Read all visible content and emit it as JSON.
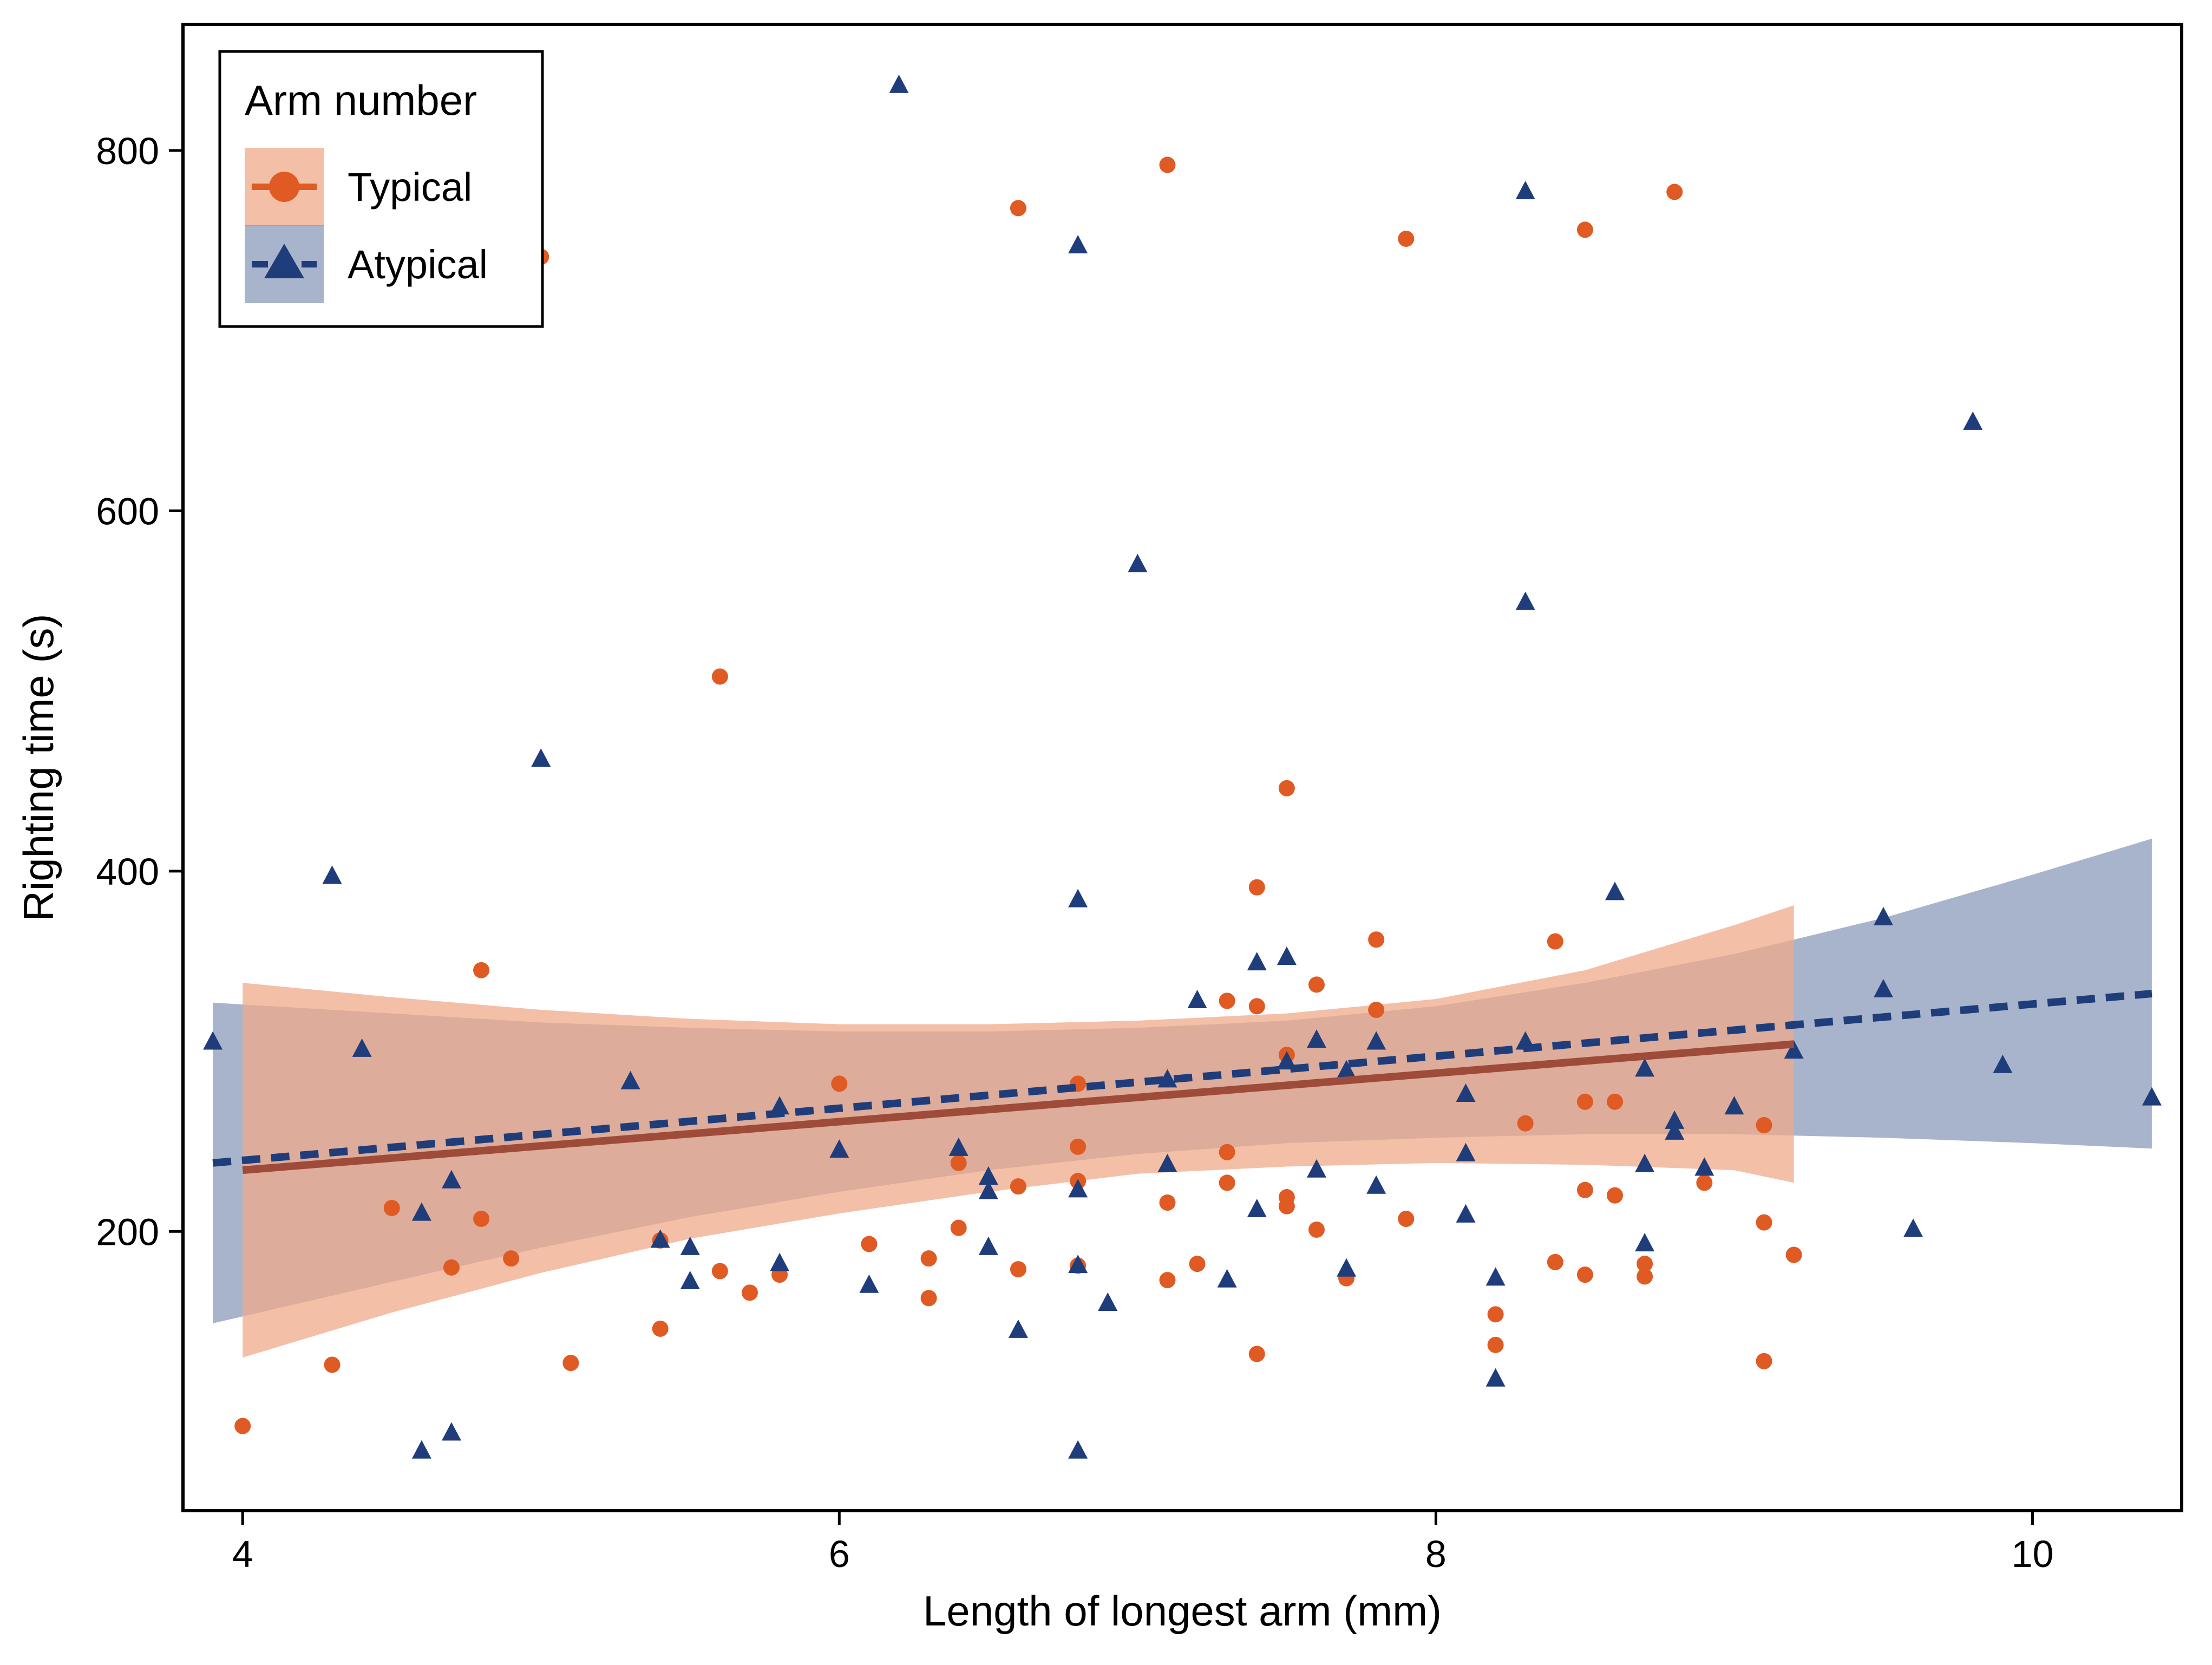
{
  "chart_data": {
    "type": "scatter",
    "title": "",
    "xlabel": "Length of longest arm (mm)",
    "ylabel": "Righting time (s)",
    "xlim": [
      3.8,
      10.5
    ],
    "ylim": [
      45,
      870
    ],
    "xticks": [
      4,
      6,
      8,
      10
    ],
    "yticks": [
      200,
      400,
      600,
      800
    ],
    "grid": false,
    "legend": {
      "title": "Arm number",
      "placement": "top-left",
      "entries": [
        "Typical",
        "Atypical"
      ]
    },
    "colors": {
      "typical": "#e05a24",
      "typical_band": "#f0a989",
      "atypical": "#1f3d7a",
      "atypical_band": "#7f91b3",
      "typical_fit_line": "#9e4b3a"
    },
    "series": [
      {
        "name": "Typical",
        "marker": "circle",
        "line_style": "solid",
        "fit": {
          "x": [
            4.0,
            9.2
          ],
          "y": [
            234,
            304
          ]
        },
        "ribbon": {
          "x": [
            4.0,
            4.5,
            5.0,
            5.5,
            6.0,
            6.5,
            7.0,
            7.5,
            8.0,
            8.5,
            9.0,
            9.2
          ],
          "lower": [
            130,
            155,
            177,
            196,
            210,
            222,
            232,
            236,
            238,
            237,
            234,
            227
          ],
          "upper": [
            338,
            330,
            323,
            318,
            315,
            315,
            317,
            321,
            329,
            345,
            370,
            381
          ]
        },
        "points": [
          [
            4.0,
            92
          ],
          [
            4.3,
            126
          ],
          [
            4.5,
            213
          ],
          [
            4.7,
            180
          ],
          [
            4.8,
            345
          ],
          [
            4.8,
            207
          ],
          [
            4.9,
            185
          ],
          [
            5.0,
            741
          ],
          [
            5.1,
            127
          ],
          [
            5.4,
            146
          ],
          [
            5.4,
            195
          ],
          [
            5.6,
            178
          ],
          [
            5.6,
            508
          ],
          [
            5.7,
            166
          ],
          [
            5.8,
            176
          ],
          [
            6.0,
            282
          ],
          [
            6.1,
            193
          ],
          [
            6.3,
            163
          ],
          [
            6.3,
            185
          ],
          [
            6.4,
            202
          ],
          [
            6.4,
            238
          ],
          [
            6.6,
            768
          ],
          [
            6.6,
            225
          ],
          [
            6.6,
            179
          ],
          [
            6.8,
            282
          ],
          [
            6.8,
            247
          ],
          [
            6.8,
            228
          ],
          [
            6.8,
            181
          ],
          [
            7.1,
            792
          ],
          [
            7.1,
            216
          ],
          [
            7.1,
            173
          ],
          [
            7.2,
            182
          ],
          [
            7.3,
            328
          ],
          [
            7.3,
            244
          ],
          [
            7.3,
            227
          ],
          [
            7.4,
            391
          ],
          [
            7.4,
            325
          ],
          [
            7.4,
            132
          ],
          [
            7.5,
            446
          ],
          [
            7.5,
            298
          ],
          [
            7.5,
            219
          ],
          [
            7.5,
            214
          ],
          [
            7.6,
            337
          ],
          [
            7.6,
            201
          ],
          [
            7.7,
            174
          ],
          [
            7.8,
            362
          ],
          [
            7.8,
            323
          ],
          [
            7.9,
            751
          ],
          [
            7.9,
            207
          ],
          [
            8.2,
            154
          ],
          [
            8.2,
            137
          ],
          [
            8.3,
            260
          ],
          [
            8.4,
            361
          ],
          [
            8.4,
            183
          ],
          [
            8.5,
            756
          ],
          [
            8.5,
            272
          ],
          [
            8.5,
            223
          ],
          [
            8.5,
            176
          ],
          [
            8.6,
            272
          ],
          [
            8.6,
            220
          ],
          [
            8.7,
            182
          ],
          [
            8.7,
            175
          ],
          [
            8.8,
            777
          ],
          [
            8.9,
            227
          ],
          [
            9.1,
            259
          ],
          [
            9.1,
            205
          ],
          [
            9.1,
            128
          ],
          [
            9.2,
            187
          ]
        ]
      },
      {
        "name": "Atypical",
        "marker": "triangle",
        "line_style": "dashed",
        "fit": {
          "x": [
            3.9,
            10.4
          ],
          "y": [
            238,
            332
          ]
        },
        "ribbon": {
          "x": [
            3.9,
            4.5,
            5.0,
            5.5,
            6.0,
            6.5,
            7.0,
            7.5,
            8.0,
            8.5,
            9.0,
            9.5,
            10.0,
            10.4
          ],
          "lower": [
            149,
            172,
            191,
            208,
            222,
            234,
            243,
            249,
            252,
            254,
            254,
            252,
            249,
            246
          ],
          "upper": [
            327,
            321,
            316,
            313,
            311,
            311,
            313,
            317,
            325,
            338,
            354,
            374,
            398,
            418
          ]
        },
        "points": [
          [
            3.9,
            305
          ],
          [
            4.3,
            397
          ],
          [
            4.4,
            301
          ],
          [
            4.6,
            78
          ],
          [
            4.6,
            210
          ],
          [
            4.7,
            228
          ],
          [
            4.7,
            88
          ],
          [
            5.0,
            462
          ],
          [
            5.3,
            283
          ],
          [
            5.4,
            195
          ],
          [
            5.5,
            191
          ],
          [
            5.5,
            172
          ],
          [
            5.8,
            269
          ],
          [
            5.8,
            182
          ],
          [
            6.0,
            245
          ],
          [
            6.1,
            170
          ],
          [
            6.2,
            836
          ],
          [
            6.4,
            246
          ],
          [
            6.5,
            230
          ],
          [
            6.5,
            222
          ],
          [
            6.5,
            191
          ],
          [
            6.6,
            145
          ],
          [
            6.8,
            747
          ],
          [
            6.8,
            384
          ],
          [
            6.8,
            223
          ],
          [
            6.8,
            181
          ],
          [
            6.8,
            78
          ],
          [
            6.9,
            160
          ],
          [
            7.0,
            570
          ],
          [
            7.1,
            284
          ],
          [
            7.1,
            237
          ],
          [
            7.2,
            328
          ],
          [
            7.3,
            173
          ],
          [
            7.4,
            349
          ],
          [
            7.4,
            212
          ],
          [
            7.5,
            352
          ],
          [
            7.5,
            294
          ],
          [
            7.6,
            306
          ],
          [
            7.6,
            234
          ],
          [
            7.7,
            289
          ],
          [
            7.7,
            179
          ],
          [
            7.8,
            305
          ],
          [
            7.8,
            225
          ],
          [
            8.1,
            276
          ],
          [
            8.1,
            243
          ],
          [
            8.1,
            209
          ],
          [
            8.2,
            174
          ],
          [
            8.2,
            118
          ],
          [
            8.3,
            777
          ],
          [
            8.3,
            549
          ],
          [
            8.3,
            305
          ],
          [
            8.6,
            388
          ],
          [
            8.7,
            290
          ],
          [
            8.7,
            237
          ],
          [
            8.7,
            193
          ],
          [
            8.8,
            261
          ],
          [
            8.8,
            255
          ],
          [
            8.9,
            235
          ],
          [
            9.0,
            269
          ],
          [
            9.2,
            300
          ],
          [
            9.5,
            374
          ],
          [
            9.5,
            334
          ],
          [
            9.6,
            201
          ],
          [
            9.8,
            649
          ],
          [
            9.9,
            292
          ],
          [
            10.4,
            274
          ]
        ]
      }
    ]
  }
}
